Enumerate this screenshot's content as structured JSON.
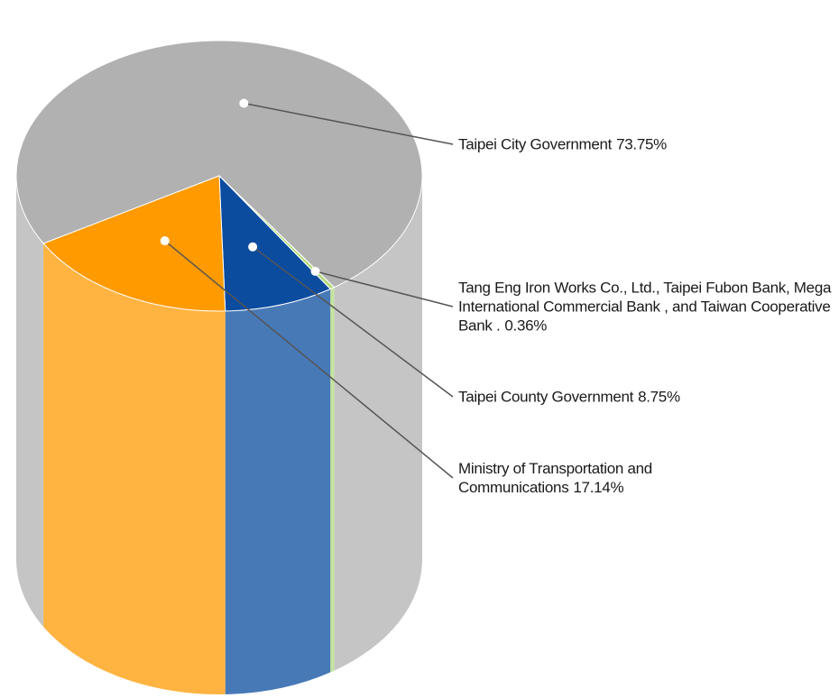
{
  "chart_data": {
    "type": "pie",
    "categories": [
      "Taipei City Government",
      "Tang Eng Iron Works Co., Ltd., Taipei Fubon Bank, Mega International Commercial Bank , and Taiwan Cooperative Bank .",
      "Taipei County Government",
      "Ministry of Transportation and Communications"
    ],
    "values": [
      73.75,
      0.36,
      8.75,
      17.14
    ],
    "value_labels": [
      "73.75%",
      "0.36%",
      "8.75%",
      "17.14%"
    ],
    "colors": [
      "#b1b1b1",
      "#b3dc7e",
      "#0b4c9f",
      "#ff9a00"
    ]
  }
}
